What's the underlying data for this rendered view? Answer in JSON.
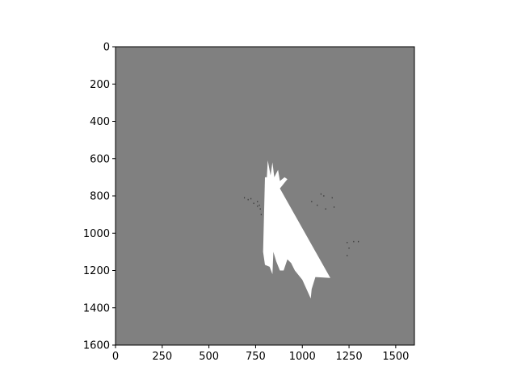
{
  "chart_data": {
    "type": "heatmap",
    "title": "",
    "xlabel": "",
    "ylabel": "",
    "xlim": [
      0,
      1600
    ],
    "ylim": [
      1600,
      0
    ],
    "y_inverted": true,
    "grid": false,
    "xticks": [
      0,
      250,
      500,
      750,
      1000,
      1250,
      1500
    ],
    "yticks": [
      0,
      200,
      400,
      600,
      800,
      1000,
      1200,
      1400,
      1600
    ],
    "x_tick_labels": [
      "0",
      "250",
      "500",
      "750",
      "1000",
      "1250",
      "1500"
    ],
    "y_tick_labels": [
      "0",
      "200",
      "400",
      "600",
      "800",
      "1000",
      "1200",
      "1400",
      "1600"
    ],
    "colors": {
      "background_value": "#808080",
      "high_value": "#ffffff",
      "low_value": "#000000",
      "axes": "#000000"
    },
    "regions": [
      {
        "name": "bright-region",
        "value": "high",
        "polygon": [
          [
            790,
            1100
          ],
          [
            800,
            700
          ],
          [
            810,
            700
          ],
          [
            815,
            610
          ],
          [
            830,
            690
          ],
          [
            840,
            620
          ],
          [
            850,
            700
          ],
          [
            870,
            660
          ],
          [
            880,
            720
          ],
          [
            905,
            700
          ],
          [
            920,
            710
          ],
          [
            880,
            760
          ],
          [
            880,
            760
          ],
          [
            1150,
            1240
          ],
          [
            1070,
            1235
          ],
          [
            1050,
            1300
          ],
          [
            1045,
            1350
          ],
          [
            1000,
            1250
          ],
          [
            960,
            1200
          ],
          [
            940,
            1160
          ],
          [
            920,
            1140
          ],
          [
            900,
            1200
          ],
          [
            880,
            1200
          ],
          [
            860,
            1150
          ],
          [
            845,
            1100
          ],
          [
            840,
            1220
          ],
          [
            825,
            1180
          ],
          [
            800,
            1170
          ],
          [
            790,
            1100
          ]
        ]
      },
      {
        "name": "bright-spike",
        "value": "high",
        "polygon": [
          [
            830,
            770
          ],
          [
            870,
            690
          ],
          [
            860,
            770
          ]
        ]
      }
    ],
    "speckles": [
      {
        "x": 690,
        "y": 810,
        "value": "low"
      },
      {
        "x": 710,
        "y": 820,
        "value": "low"
      },
      {
        "x": 725,
        "y": 815,
        "value": "low"
      },
      {
        "x": 740,
        "y": 840,
        "value": "low"
      },
      {
        "x": 760,
        "y": 830,
        "value": "low"
      },
      {
        "x": 770,
        "y": 850,
        "value": "low"
      },
      {
        "x": 775,
        "y": 870,
        "value": "low"
      },
      {
        "x": 780,
        "y": 900,
        "value": "low"
      },
      {
        "x": 760,
        "y": 855,
        "value": "low"
      },
      {
        "x": 1050,
        "y": 830,
        "value": "low"
      },
      {
        "x": 1080,
        "y": 850,
        "value": "low"
      },
      {
        "x": 1100,
        "y": 790,
        "value": "low"
      },
      {
        "x": 1115,
        "y": 800,
        "value": "low"
      },
      {
        "x": 1125,
        "y": 870,
        "value": "low"
      },
      {
        "x": 1160,
        "y": 810,
        "value": "low"
      },
      {
        "x": 1170,
        "y": 860,
        "value": "low"
      },
      {
        "x": 1240,
        "y": 1050,
        "value": "low"
      },
      {
        "x": 1250,
        "y": 1080,
        "value": "low"
      },
      {
        "x": 1275,
        "y": 1045,
        "value": "low"
      },
      {
        "x": 1300,
        "y": 1045,
        "value": "low"
      },
      {
        "x": 1240,
        "y": 1120,
        "value": "low"
      }
    ]
  }
}
